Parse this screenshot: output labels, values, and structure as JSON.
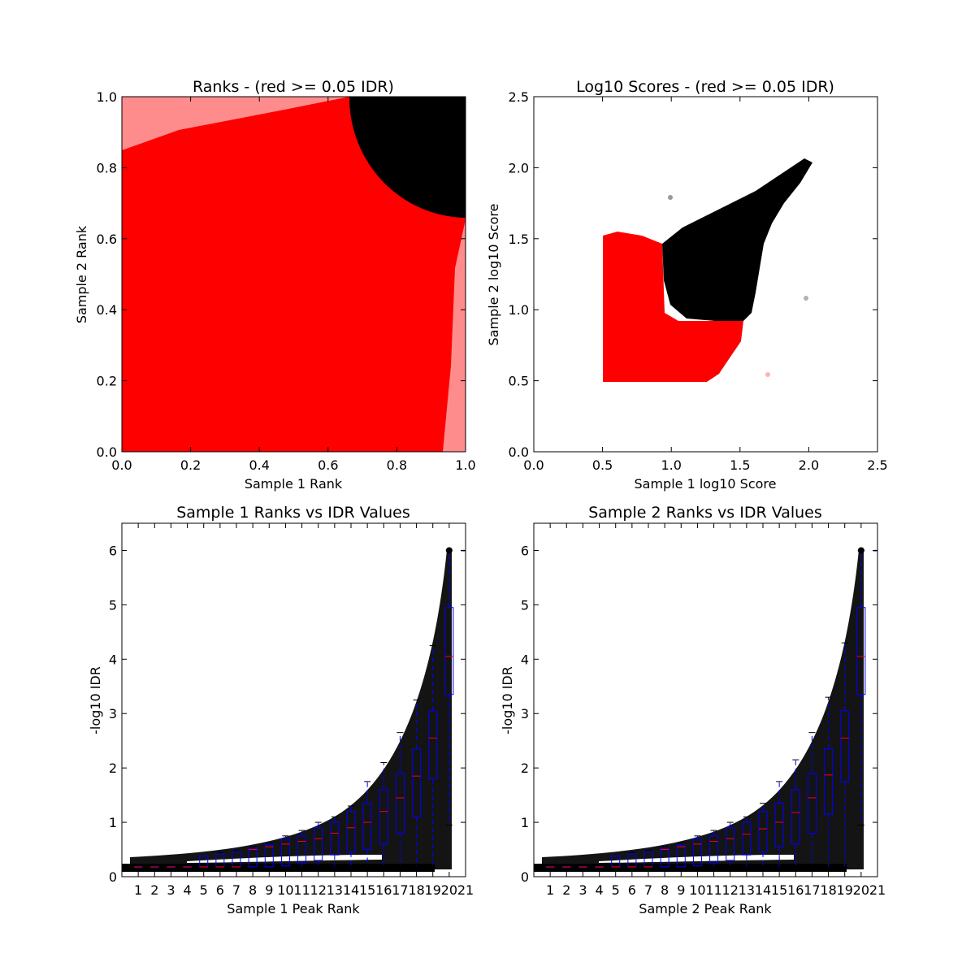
{
  "chart_data": [
    {
      "type": "scatter",
      "title": "Ranks - (red >= 0.05 IDR)",
      "xlabel": "Sample 1 Rank",
      "ylabel": "Sample 2 Rank",
      "xlim": [
        0.0,
        1.0
      ],
      "ylim": [
        0.0,
        1.0
      ],
      "xticks": [
        "0.0",
        "0.2",
        "0.4",
        "0.6",
        "0.8",
        "1.0"
      ],
      "yticks": [
        "0.0",
        "0.2",
        "0.4",
        "0.6",
        "0.8",
        "1.0"
      ],
      "grid": false,
      "description_of_points": {
        "red_points": "fill nearly the whole square; density lower near the top-left and right edges",
        "black_points": "quarter-disc in the top-right corner centred near (1.0, 1.0), radius about 0.33"
      },
      "series": [
        {
          "color": "#ff0000",
          "x": [
            0.05,
            0.2,
            0.4,
            0.6,
            0.8,
            0.95
          ],
          "y": [
            0.05,
            0.3,
            0.5,
            0.7,
            0.6,
            0.2
          ]
        },
        {
          "color": "#000000",
          "x": [
            0.7,
            0.8,
            0.9,
            0.95,
            1.0
          ],
          "y": [
            0.95,
            0.85,
            0.75,
            0.7,
            1.0
          ]
        }
      ]
    },
    {
      "type": "scatter",
      "title": "Log10 Scores - (red >= 0.05 IDR)",
      "xlabel": "Sample 1 log10 Score",
      "ylabel": "Sample 2 log10 Score",
      "xlim": [
        0.0,
        2.5
      ],
      "ylim": [
        0.0,
        2.5
      ],
      "xticks": [
        "0.0",
        "0.5",
        "1.0",
        "1.5",
        "2.0",
        "2.5"
      ],
      "yticks": [
        "0.0",
        "0.5",
        "1.0",
        "1.5",
        "2.0",
        "2.5"
      ],
      "grid": false,
      "series": [
        {
          "color": "#ff0000",
          "x": [
            0.5,
            0.7,
            0.9,
            1.1,
            1.3,
            1.45
          ],
          "y": [
            0.5,
            0.7,
            0.9,
            0.6,
            0.55,
            0.8
          ]
        },
        {
          "color": "#000000",
          "x": [
            0.93,
            1.1,
            1.3,
            1.5,
            1.7,
            1.9,
            2.0
          ],
          "y": [
            1.35,
            1.2,
            1.05,
            1.25,
            1.55,
            1.85,
            2.1
          ]
        }
      ]
    },
    {
      "type": "box",
      "title": "Sample 1 Ranks vs IDR Values",
      "xlabel": "Sample 1 Peak Rank",
      "ylabel": "-log10 IDR",
      "xlim": [
        0,
        21
      ],
      "ylim": [
        0,
        6.5
      ],
      "xticks": [
        "1",
        "2",
        "3",
        "4",
        "5",
        "6",
        "7",
        "8",
        "9",
        "10",
        "11",
        "12",
        "13",
        "14",
        "15",
        "16",
        "17",
        "18",
        "19",
        "20",
        "21"
      ],
      "yticks": [
        "0",
        "1",
        "2",
        "3",
        "4",
        "5",
        "6"
      ],
      "grid": false,
      "boxes": [
        {
          "pos": 1,
          "q1": 0.18,
          "med": 0.18,
          "q3": 0.18,
          "wlo": 0.18,
          "whi": 0.18
        },
        {
          "pos": 2,
          "q1": 0.18,
          "med": 0.18,
          "q3": 0.18,
          "wlo": 0.18,
          "whi": 0.18
        },
        {
          "pos": 3,
          "q1": 0.18,
          "med": 0.18,
          "q3": 0.18,
          "wlo": 0.18,
          "whi": 0.18
        },
        {
          "pos": 4,
          "q1": 0.18,
          "med": 0.18,
          "q3": 0.18,
          "wlo": 0.18,
          "whi": 0.18
        },
        {
          "pos": 5,
          "q1": 0.18,
          "med": 0.18,
          "q3": 0.38,
          "wlo": 0.18,
          "whi": 0.38
        },
        {
          "pos": 6,
          "q1": 0.18,
          "med": 0.18,
          "q3": 0.42,
          "wlo": 0.18,
          "whi": 0.44
        },
        {
          "pos": 7,
          "q1": 0.18,
          "med": 0.18,
          "q3": 0.46,
          "wlo": 0.18,
          "whi": 0.48
        },
        {
          "pos": 8,
          "q1": 0.18,
          "med": 0.5,
          "q3": 0.52,
          "wlo": 0.18,
          "whi": 0.55
        },
        {
          "pos": 9,
          "q1": 0.18,
          "med": 0.55,
          "q3": 0.58,
          "wlo": 0.18,
          "whi": 0.62
        },
        {
          "pos": 10,
          "q1": 0.2,
          "med": 0.6,
          "q3": 0.7,
          "wlo": 0.18,
          "whi": 0.75
        },
        {
          "pos": 11,
          "q1": 0.25,
          "med": 0.65,
          "q3": 0.75,
          "wlo": 0.18,
          "whi": 0.85
        },
        {
          "pos": 12,
          "q1": 0.3,
          "med": 0.7,
          "q3": 0.9,
          "wlo": 0.18,
          "whi": 1.0
        },
        {
          "pos": 13,
          "q1": 0.4,
          "med": 0.8,
          "q3": 1.0,
          "wlo": 0.18,
          "whi": 1.1
        },
        {
          "pos": 14,
          "q1": 0.45,
          "med": 0.9,
          "q3": 1.2,
          "wlo": 0.18,
          "whi": 1.3
        },
        {
          "pos": 15,
          "q1": 0.5,
          "med": 1.0,
          "q3": 1.35,
          "wlo": 0.18,
          "whi": 1.75
        },
        {
          "pos": 16,
          "q1": 0.6,
          "med": 1.2,
          "q3": 1.6,
          "wlo": 0.18,
          "whi": 2.1
        },
        {
          "pos": 17,
          "q1": 0.8,
          "med": 1.45,
          "q3": 1.9,
          "wlo": 0.18,
          "whi": 2.65
        },
        {
          "pos": 18,
          "q1": 1.1,
          "med": 1.85,
          "q3": 2.35,
          "wlo": 0.18,
          "whi": 3.25
        },
        {
          "pos": 19,
          "q1": 1.8,
          "med": 2.55,
          "q3": 3.05,
          "wlo": 0.18,
          "whi": 4.25
        },
        {
          "pos": 20,
          "q1": 3.35,
          "med": 4.05,
          "q3": 4.95,
          "wlo": 0.95,
          "whi": 6.0
        },
        {
          "pos": 21,
          "q1": 6.0,
          "med": 6.0,
          "q3": 6.0,
          "wlo": 6.0,
          "whi": 6.0
        }
      ]
    },
    {
      "type": "box",
      "title": "Sample 2 Ranks vs IDR Values",
      "xlabel": "Sample 2 Peak Rank",
      "ylabel": "-log10 IDR",
      "xlim": [
        0,
        21
      ],
      "ylim": [
        0,
        6.5
      ],
      "xticks": [
        "1",
        "2",
        "3",
        "4",
        "5",
        "6",
        "7",
        "8",
        "9",
        "10",
        "11",
        "12",
        "13",
        "14",
        "15",
        "16",
        "17",
        "18",
        "19",
        "20",
        "21"
      ],
      "yticks": [
        "0",
        "1",
        "2",
        "3",
        "4",
        "5",
        "6"
      ],
      "grid": false,
      "boxes": [
        {
          "pos": 1,
          "q1": 0.18,
          "med": 0.18,
          "q3": 0.18,
          "wlo": 0.18,
          "whi": 0.18
        },
        {
          "pos": 2,
          "q1": 0.18,
          "med": 0.18,
          "q3": 0.18,
          "wlo": 0.18,
          "whi": 0.18
        },
        {
          "pos": 3,
          "q1": 0.18,
          "med": 0.18,
          "q3": 0.18,
          "wlo": 0.18,
          "whi": 0.18
        },
        {
          "pos": 4,
          "q1": 0.18,
          "med": 0.18,
          "q3": 0.18,
          "wlo": 0.18,
          "whi": 0.18
        },
        {
          "pos": 5,
          "q1": 0.18,
          "med": 0.18,
          "q3": 0.38,
          "wlo": 0.18,
          "whi": 0.38
        },
        {
          "pos": 6,
          "q1": 0.18,
          "med": 0.18,
          "q3": 0.42,
          "wlo": 0.18,
          "whi": 0.44
        },
        {
          "pos": 7,
          "q1": 0.18,
          "med": 0.18,
          "q3": 0.46,
          "wlo": 0.18,
          "whi": 0.48
        },
        {
          "pos": 8,
          "q1": 0.18,
          "med": 0.5,
          "q3": 0.52,
          "wlo": 0.18,
          "whi": 0.55
        },
        {
          "pos": 9,
          "q1": 0.18,
          "med": 0.55,
          "q3": 0.58,
          "wlo": 0.18,
          "whi": 0.62
        },
        {
          "pos": 10,
          "q1": 0.2,
          "med": 0.6,
          "q3": 0.7,
          "wlo": 0.18,
          "whi": 0.75
        },
        {
          "pos": 11,
          "q1": 0.25,
          "med": 0.65,
          "q3": 0.75,
          "wlo": 0.18,
          "whi": 0.85
        },
        {
          "pos": 12,
          "q1": 0.3,
          "med": 0.7,
          "q3": 0.9,
          "wlo": 0.18,
          "whi": 1.0
        },
        {
          "pos": 13,
          "q1": 0.4,
          "med": 0.78,
          "q3": 1.0,
          "wlo": 0.18,
          "whi": 1.1
        },
        {
          "pos": 14,
          "q1": 0.45,
          "med": 0.88,
          "q3": 1.2,
          "wlo": 0.18,
          "whi": 1.35
        },
        {
          "pos": 15,
          "q1": 0.55,
          "med": 1.0,
          "q3": 1.35,
          "wlo": 0.18,
          "whi": 1.75
        },
        {
          "pos": 16,
          "q1": 0.6,
          "med": 1.18,
          "q3": 1.6,
          "wlo": 0.18,
          "whi": 2.15
        },
        {
          "pos": 17,
          "q1": 0.8,
          "med": 1.45,
          "q3": 1.9,
          "wlo": 0.18,
          "whi": 2.65
        },
        {
          "pos": 18,
          "q1": 1.15,
          "med": 1.87,
          "q3": 2.35,
          "wlo": 0.18,
          "whi": 3.3
        },
        {
          "pos": 19,
          "q1": 1.75,
          "med": 2.55,
          "q3": 3.05,
          "wlo": 0.18,
          "whi": 4.3
        },
        {
          "pos": 20,
          "q1": 3.35,
          "med": 4.05,
          "q3": 4.95,
          "wlo": 0.95,
          "whi": 6.0
        },
        {
          "pos": 21,
          "q1": 6.0,
          "med": 6.0,
          "q3": 6.0,
          "wlo": 6.0,
          "whi": 6.0
        }
      ]
    }
  ]
}
